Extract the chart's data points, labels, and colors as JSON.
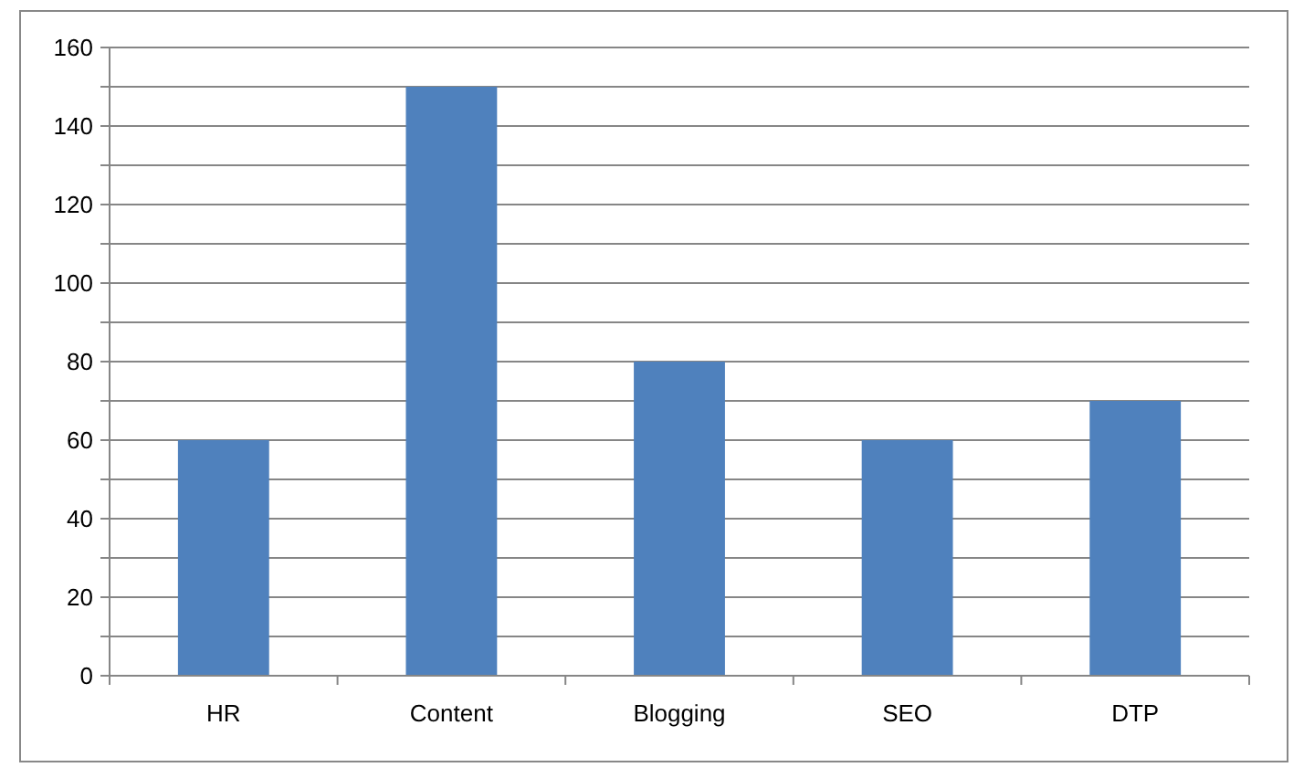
{
  "chart_data": {
    "type": "bar",
    "categories": [
      "HR",
      "Content",
      "Blogging",
      "SEO",
      "DTP"
    ],
    "values": [
      60,
      150,
      80,
      60,
      70
    ],
    "color": "#4f81bd",
    "ylim": [
      0,
      160
    ],
    "yticks": [
      0,
      {
        "value": 10,
        "label": null
      },
      20,
      {
        "value": 30,
        "label": null
      },
      40,
      {
        "value": 50,
        "label": null
      },
      60,
      {
        "value": 70,
        "label": null
      },
      80,
      {
        "value": 90,
        "label": null
      },
      100,
      {
        "value": 110,
        "label": null
      },
      120,
      {
        "value": 130,
        "label": null
      },
      140,
      {
        "value": 150,
        "label": null
      },
      160
    ],
    "grid": true
  }
}
